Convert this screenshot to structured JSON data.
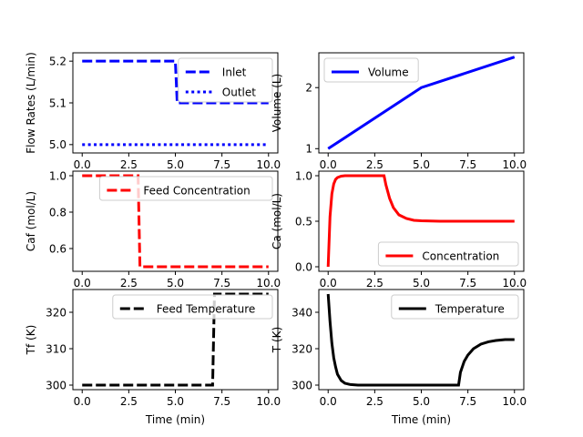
{
  "chart_data": [
    {
      "type": "line",
      "ylabel": "Flow Rates (L/min)",
      "xlim": [
        -0.5,
        10.5
      ],
      "ylim": [
        4.98,
        5.22
      ],
      "xticks": [
        0,
        2.5,
        5,
        7.5,
        10
      ],
      "xtick_labels": [
        "0.0",
        "2.5",
        "5.0",
        "7.5",
        "10.0"
      ],
      "yticks": [
        5.0,
        5.1,
        5.2
      ],
      "ytick_labels": [
        "5.0",
        "5.1",
        "5.2"
      ],
      "legend_position": "top-right",
      "series": [
        {
          "name": "Inlet",
          "color": "#0000ff",
          "style": "dashed",
          "x": [
            0,
            5,
            5.1,
            10
          ],
          "y": [
            5.2,
            5.2,
            5.1,
            5.1
          ]
        },
        {
          "name": "Outlet",
          "color": "#0000ff",
          "style": "dotted",
          "x": [
            0,
            10
          ],
          "y": [
            5.0,
            5.0
          ]
        }
      ]
    },
    {
      "type": "line",
      "ylabel": "Volume (L)",
      "xlim": [
        -0.5,
        10.5
      ],
      "ylim": [
        0.93,
        2.57
      ],
      "xticks": [
        0,
        2.5,
        5,
        7.5,
        10
      ],
      "xtick_labels": [
        "0.0",
        "2.5",
        "5.0",
        "7.5",
        "10.0"
      ],
      "yticks": [
        1,
        2
      ],
      "ytick_labels": [
        "1",
        "2"
      ],
      "legend_position": "top-left",
      "series": [
        {
          "name": "Volume",
          "color": "#0000ff",
          "style": "solid",
          "x": [
            0,
            5,
            10
          ],
          "y": [
            1.0,
            2.0,
            2.5
          ]
        }
      ]
    },
    {
      "type": "line",
      "ylabel": "Caf (mol/L)",
      "xlim": [
        -0.5,
        10.5
      ],
      "ylim": [
        0.475,
        1.025
      ],
      "xticks": [
        0,
        2.5,
        5,
        7.5,
        10
      ],
      "xtick_labels": [
        "0.0",
        "2.5",
        "5.0",
        "7.5",
        "10.0"
      ],
      "yticks": [
        0.6,
        0.8,
        1.0
      ],
      "ytick_labels": [
        "0.6",
        "0.8",
        "1.0"
      ],
      "legend_position": "top-right",
      "series": [
        {
          "name": "Feed Concentration",
          "color": "#ff0000",
          "style": "dashed",
          "x": [
            0,
            3,
            3.1,
            10
          ],
          "y": [
            1.0,
            1.0,
            0.5,
            0.5
          ]
        }
      ]
    },
    {
      "type": "line",
      "ylabel": "Ca (mol/L)",
      "xlim": [
        -0.5,
        10.5
      ],
      "ylim": [
        -0.05,
        1.05
      ],
      "xticks": [
        0,
        2.5,
        5,
        7.5,
        10
      ],
      "xtick_labels": [
        "0.0",
        "2.5",
        "5.0",
        "7.5",
        "10.0"
      ],
      "yticks": [
        0.0,
        0.5,
        1.0
      ],
      "ytick_labels": [
        "0.0",
        "0.5",
        "1.0"
      ],
      "legend_position": "lower-right",
      "series": [
        {
          "name": "Concentration",
          "color": "#ff0000",
          "style": "solid",
          "x": [
            0,
            0.1,
            0.2,
            0.3,
            0.4,
            0.5,
            0.7,
            0.9,
            1.2,
            1.6,
            2.0,
            2.5,
            3.0,
            3.1,
            3.3,
            3.5,
            3.8,
            4.2,
            4.6,
            5.0,
            6.0,
            7.0,
            8.0,
            9.0,
            10.0
          ],
          "y": [
            0.0,
            0.55,
            0.8,
            0.91,
            0.96,
            0.98,
            0.995,
            1.0,
            1.0,
            1.0,
            1.0,
            1.0,
            1.0,
            0.9,
            0.75,
            0.65,
            0.57,
            0.53,
            0.51,
            0.505,
            0.5,
            0.5,
            0.5,
            0.5,
            0.5
          ]
        }
      ]
    },
    {
      "type": "line",
      "ylabel": "Tf (K)",
      "xlabel": "Time (min)",
      "xlim": [
        -0.5,
        10.5
      ],
      "ylim": [
        298.75,
        326.25
      ],
      "xticks": [
        0,
        2.5,
        5,
        7.5,
        10
      ],
      "xtick_labels": [
        "0.0",
        "2.5",
        "5.0",
        "7.5",
        "10.0"
      ],
      "yticks": [
        300,
        310,
        320
      ],
      "ytick_labels": [
        "300",
        "310",
        "320"
      ],
      "legend_position": "top-right",
      "series": [
        {
          "name": "Feed Temperature",
          "color": "#000000",
          "style": "dashed",
          "x": [
            0,
            7,
            7.1,
            10
          ],
          "y": [
            300,
            300,
            325,
            325
          ]
        }
      ]
    },
    {
      "type": "line",
      "ylabel": "T (K)",
      "xlabel": "Time (min)",
      "xlim": [
        -0.5,
        10.5
      ],
      "ylim": [
        297.5,
        352.5
      ],
      "xticks": [
        0,
        2.5,
        5,
        7.5,
        10
      ],
      "xtick_labels": [
        "0.0",
        "2.5",
        "5.0",
        "7.5",
        "10.0"
      ],
      "yticks": [
        300,
        320,
        340
      ],
      "ytick_labels": [
        "300",
        "320",
        "340"
      ],
      "legend_position": "top-right",
      "series": [
        {
          "name": "Temperature",
          "color": "#000000",
          "style": "solid",
          "x": [
            0,
            0.1,
            0.2,
            0.3,
            0.4,
            0.5,
            0.7,
            0.9,
            1.2,
            1.6,
            2.0,
            3.0,
            4.0,
            5.0,
            6.0,
            7.0,
            7.1,
            7.3,
            7.5,
            7.8,
            8.2,
            8.6,
            9.0,
            9.5,
            10.0
          ],
          "y": [
            350,
            335,
            323,
            315,
            310,
            306,
            302.5,
            301,
            300.3,
            300,
            300,
            300,
            300,
            300,
            300,
            300,
            307,
            313,
            316.5,
            320,
            322.5,
            323.8,
            324.5,
            325,
            325
          ]
        }
      ]
    }
  ]
}
